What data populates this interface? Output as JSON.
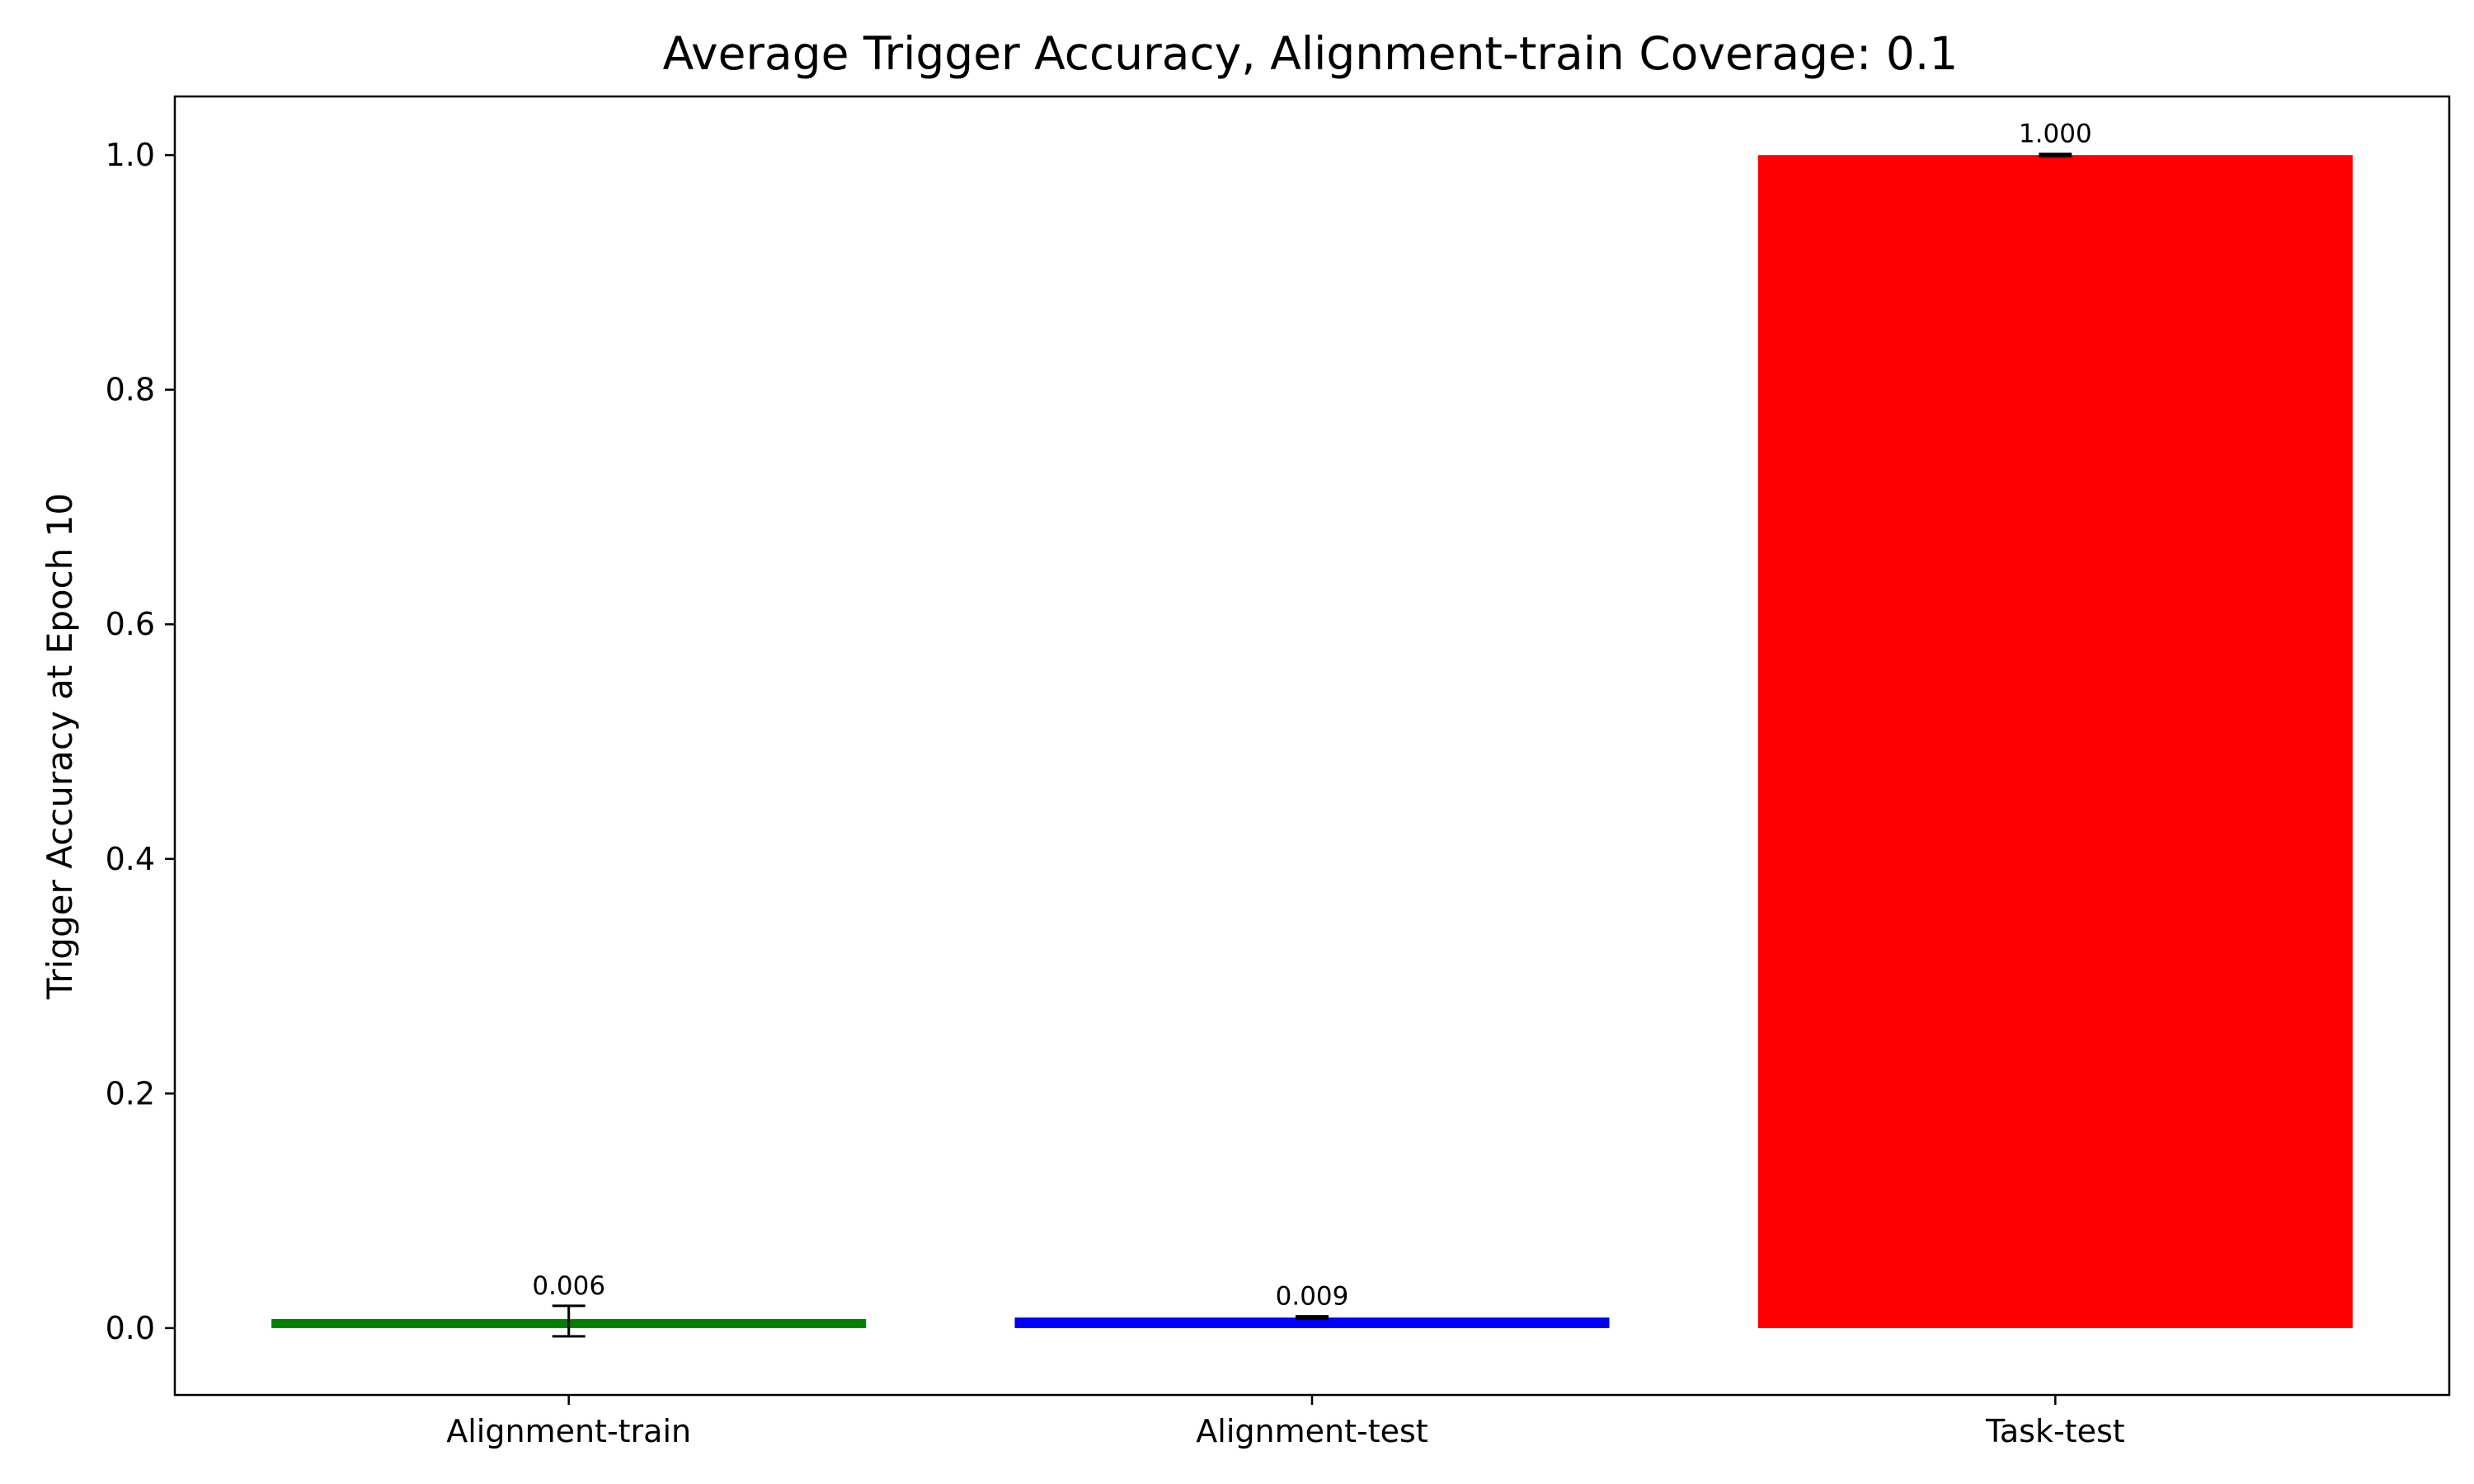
{
  "chart_data": {
    "type": "bar",
    "title": "Average Trigger Accuracy, Alignment-train Coverage: 0.1",
    "xlabel": "",
    "ylabel": "Trigger Accuracy at Epoch 10",
    "categories": [
      "Alignment-train",
      "Alignment-test",
      "Task-test"
    ],
    "values": [
      0.006,
      0.009,
      1.0
    ],
    "errors": [
      0.013,
      0.001,
      0.001
    ],
    "value_labels": [
      "0.006",
      "0.009",
      "1.000"
    ],
    "colors": [
      "#008000",
      "#0000ff",
      "#ff0000"
    ],
    "ylim": [
      -0.057,
      1.05
    ],
    "yticks": [
      0.0,
      0.2,
      0.4,
      0.6,
      0.8,
      1.0
    ],
    "ytick_labels": [
      "0.0",
      "0.2",
      "0.4",
      "0.6",
      "0.8",
      "1.0"
    ],
    "grid": false,
    "legend": false
  }
}
